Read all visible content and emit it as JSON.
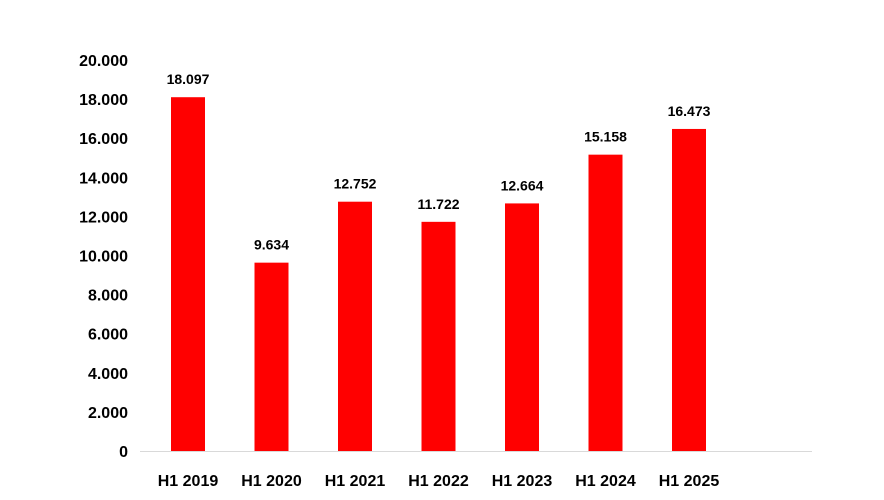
{
  "chart_data": {
    "type": "bar",
    "categories": [
      "H1 2019",
      "H1 2020",
      "H1 2021",
      "H1 2022",
      "H1 2023",
      "H1 2024",
      "H1 2025"
    ],
    "values": [
      18097,
      9634,
      12752,
      11722,
      12664,
      15158,
      16473
    ],
    "data_labels": [
      "18.097",
      "9.634",
      "12.752",
      "11.722",
      "12.664",
      "15.158",
      "16.473"
    ],
    "y_ticks": [
      0,
      2000,
      4000,
      6000,
      8000,
      10000,
      12000,
      14000,
      16000,
      18000,
      20000
    ],
    "y_tick_labels": [
      "0",
      "2.000",
      "4.000",
      "6.000",
      "8.000",
      "10.000",
      "12.000",
      "14.000",
      "16.000",
      "18.000",
      "20.000"
    ],
    "ylim": [
      0,
      20000
    ],
    "grid": false,
    "legend": "none",
    "bar_color": "#ff0000",
    "axis_color": "#d9d9d9"
  }
}
